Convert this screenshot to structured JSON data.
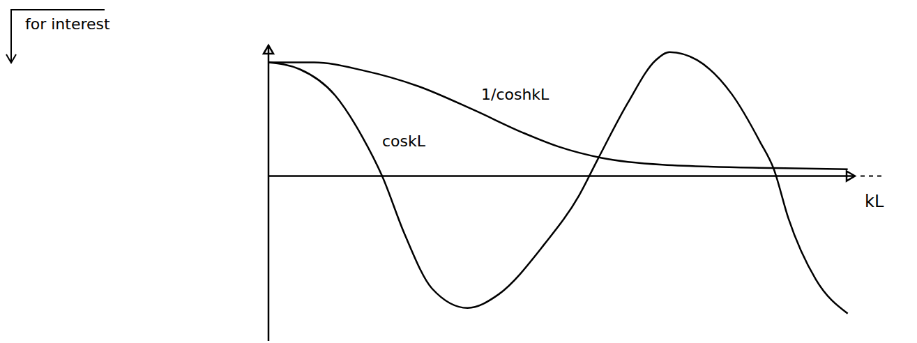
{
  "chart_data": {
    "type": "line",
    "x_label": "kL",
    "annotations": [
      "for interest"
    ],
    "xlim": [
      0,
      8.1
    ],
    "ylim": [
      -1.45,
      1.15
    ],
    "tick_labels": false,
    "grid": false,
    "series": [
      {
        "name": "1/coshkL",
        "color": "#000000",
        "line_style": "solid",
        "x": [
          0,
          0.63,
          1.3,
          2.07,
          2.84,
          3.52,
          4.0,
          4.6,
          5.44,
          6.98,
          8.0
        ],
        "values": [
          1.0,
          1.0,
          0.93,
          0.79,
          0.58,
          0.38,
          0.26,
          0.16,
          0.1,
          0.07,
          0.06
        ]
      },
      {
        "name": "coskL",
        "color": "#000000",
        "line_style": "solid",
        "x": [
          0,
          0.43,
          0.92,
          1.3,
          1.57,
          1.88,
          2.26,
          2.75,
          3.18,
          3.81,
          4.29,
          4.55,
          4.96,
          5.35,
          5.54,
          5.92,
          6.4,
          6.79,
          6.98,
          7.18,
          7.56,
          8.0
        ],
        "values": [
          1.0,
          0.94,
          0.71,
          0.34,
          0.0,
          -0.51,
          -0.99,
          -1.16,
          -1.04,
          -0.6,
          -0.17,
          0.15,
          0.64,
          1.02,
          1.09,
          1.02,
          0.72,
          0.3,
          0.06,
          -0.37,
          -0.91,
          -1.21
        ]
      }
    ]
  }
}
